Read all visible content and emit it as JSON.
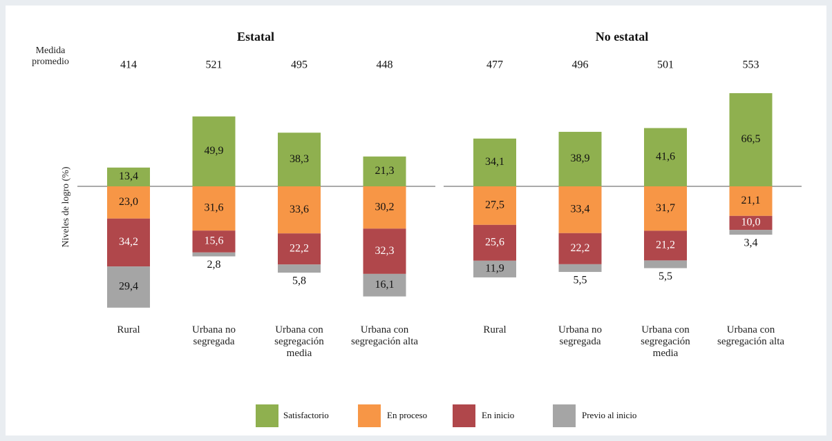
{
  "chart_data": {
    "type": "bar",
    "y_label": "Niveles de logro (%)",
    "mean_label": "Medida promedio",
    "groups": [
      "Estatal",
      "No estatal"
    ],
    "categories": [
      "Rural",
      "Urbana no segregada",
      "Urbana con segregación media",
      "Urbana con segregación alta",
      "Rural",
      "Urbana no segregada",
      "Urbana con segregación media",
      "Urbana con segregación alta"
    ],
    "mean_scores": [
      414,
      521,
      495,
      448,
      477,
      496,
      501,
      553
    ],
    "series": [
      {
        "name": "Satisfactorio",
        "color": "#8fb04f",
        "values": [
          13.4,
          49.9,
          38.3,
          21.3,
          34.1,
          38.9,
          41.6,
          66.5
        ],
        "value_labels": [
          "13,4",
          "49,9",
          "38,3",
          "21,3",
          "34,1",
          "38,9",
          "41,6",
          "66,5"
        ]
      },
      {
        "name": "En proceso",
        "color": "#f79646",
        "values": [
          23.0,
          31.6,
          33.6,
          30.2,
          27.5,
          33.4,
          31.7,
          21.1
        ],
        "value_labels": [
          "23,0",
          "31,6",
          "33,6",
          "30,2",
          "27,5",
          "33,4",
          "31,7",
          "21,1"
        ]
      },
      {
        "name": "En inicio",
        "color": "#b0474b",
        "values": [
          34.2,
          15.6,
          22.2,
          32.3,
          25.6,
          22.2,
          21.2,
          10.0
        ],
        "value_labels": [
          "34,2",
          "15,6",
          "22,2",
          "32,3",
          "25,6",
          "22,2",
          "21,2",
          "10,0"
        ]
      },
      {
        "name": "Previo al inicio",
        "color": "#a5a5a5",
        "values": [
          29.4,
          2.8,
          5.8,
          16.1,
          11.9,
          5.5,
          5.5,
          3.4
        ],
        "value_labels": [
          "29,4",
          "2,8",
          "5,8",
          "16,1",
          "11,9",
          "5,5",
          "5,5",
          "3,4"
        ]
      }
    ],
    "legend": "bottom"
  }
}
